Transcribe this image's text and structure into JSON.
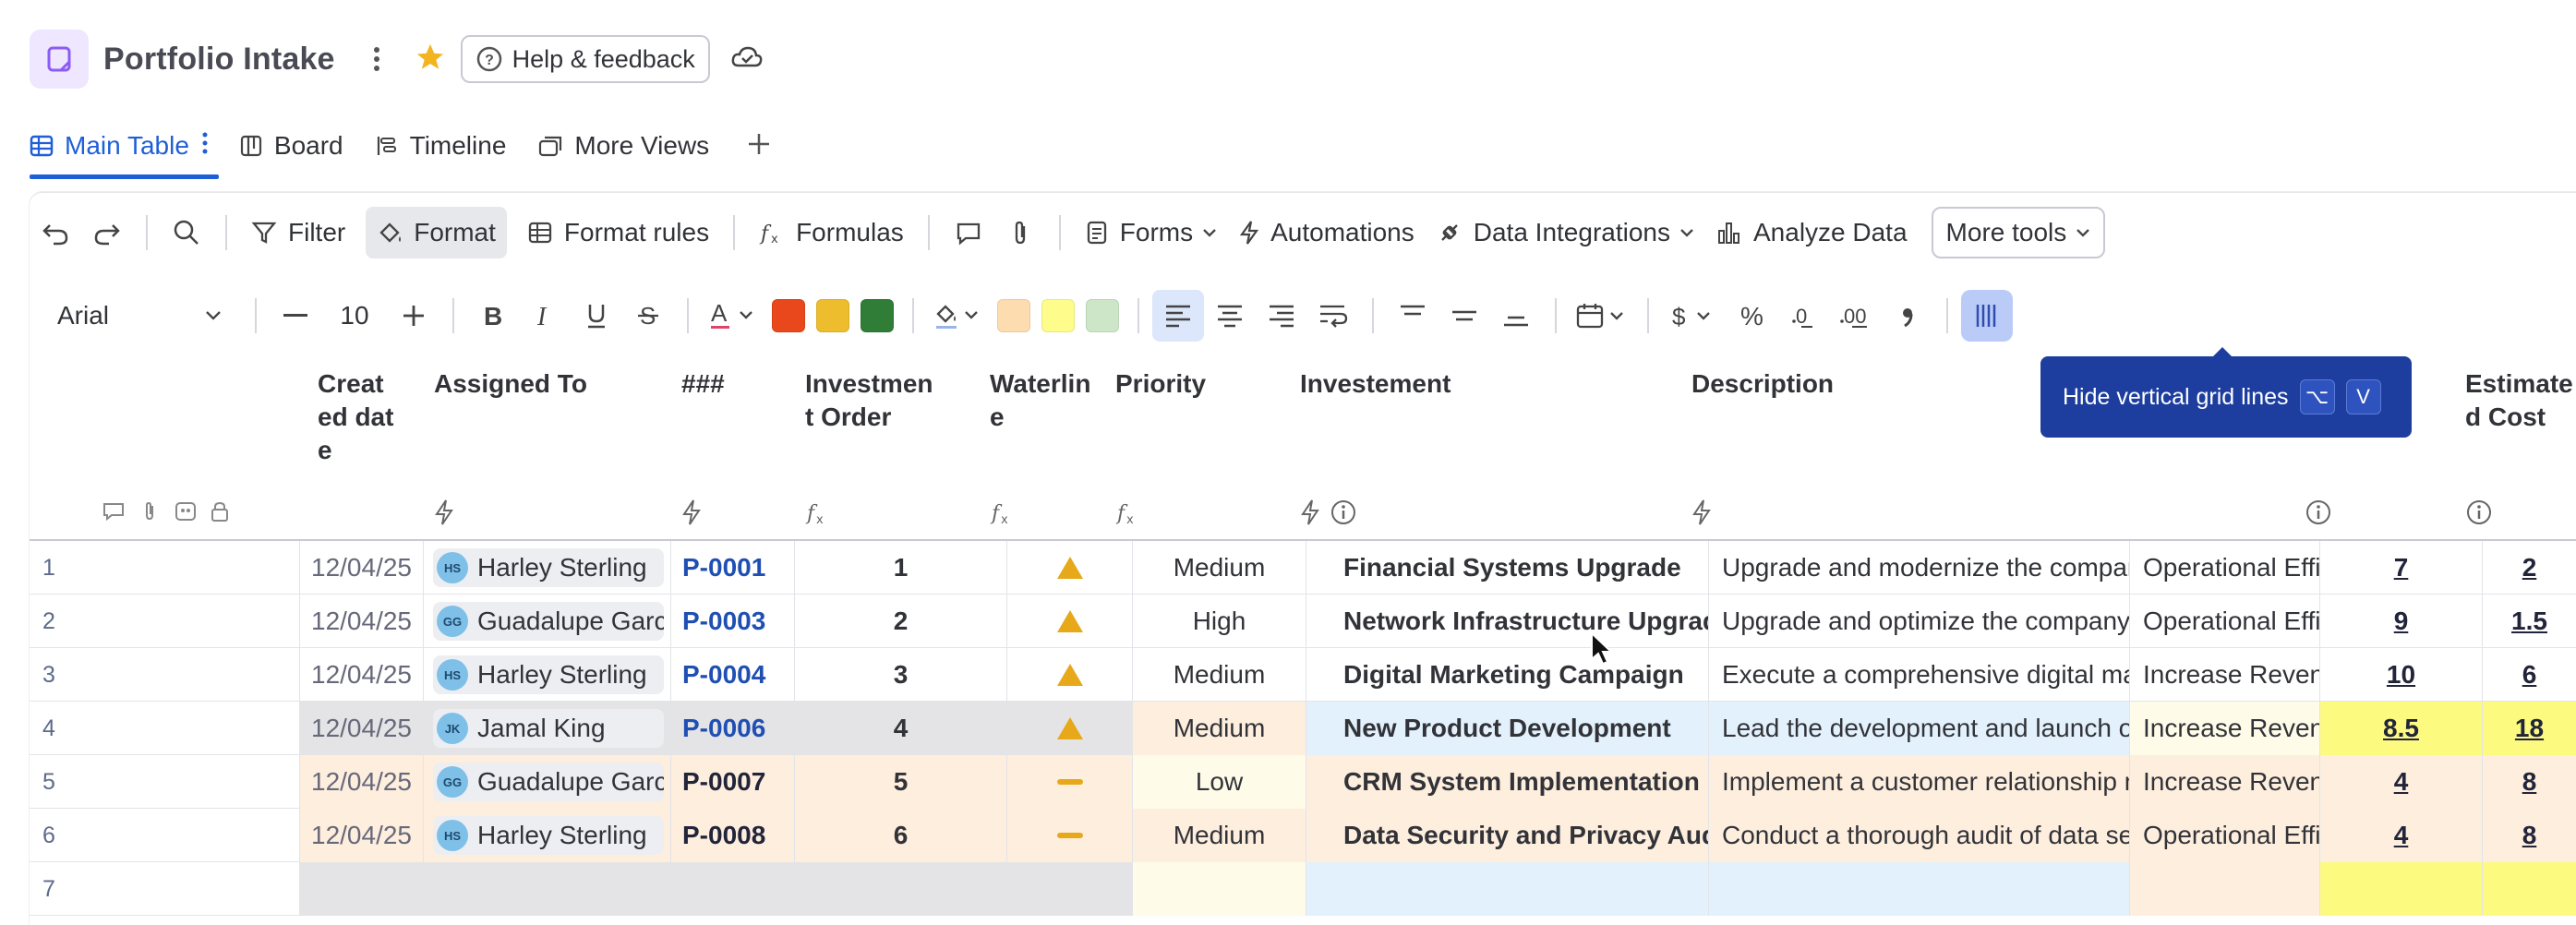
{
  "header": {
    "title": "Portfolio Intake",
    "help_label": "Help & feedback"
  },
  "views": [
    {
      "label": "Main Table",
      "icon": "table-icon"
    },
    {
      "label": "Board",
      "icon": "board-icon"
    },
    {
      "label": "Timeline",
      "icon": "timeline-icon"
    },
    {
      "label": "More Views",
      "icon": "more-views-icon"
    }
  ],
  "toolbar": {
    "filter": "Filter",
    "format": "Format",
    "format_rules": "Format rules",
    "formulas": "Formulas",
    "forms": "Forms",
    "automations": "Automations",
    "data_integrations": "Data Integrations",
    "analyze_data": "Analyze Data",
    "more_tools": "More tools"
  },
  "format_bar": {
    "font": "Arial",
    "size": "10",
    "text_colors": [
      "#e8481c",
      "#edbd2e",
      "#2f7d36"
    ],
    "fill_colors": [
      "#fddcb0",
      "#fefc8a",
      "#cde6c8"
    ]
  },
  "tooltip": {
    "text": "Hide vertical grid lines",
    "key1": "⌥",
    "key2": "V"
  },
  "columns": {
    "created_date": "Created date",
    "assigned_to": "Assigned To",
    "id": "###",
    "investment_order": "Investment Order",
    "waterline": "Waterline",
    "priority": "Priority",
    "investment": "Investement",
    "description": "Description",
    "estimated_cost": "Estimated Cost"
  },
  "rows": [
    {
      "n": "1",
      "date": "12/04/25",
      "initials": "HS",
      "assignee": "Harley Sterling",
      "id": "P-0001",
      "order": "1",
      "waterline": "triangle",
      "priority": "Medium",
      "investment": "Financial Systems Upgrade",
      "description": "Upgrade and modernize the company's financial systems",
      "goal": "Operational Efficiency",
      "c1": "7",
      "c2": "2"
    },
    {
      "n": "2",
      "date": "12/04/25",
      "initials": "GG",
      "assignee": "Guadalupe Garcia",
      "id": "P-0003",
      "order": "2",
      "waterline": "triangle",
      "priority": "High",
      "investment": "Network Infrastructure Upgrade",
      "description": "Upgrade and optimize the company's network",
      "goal": "Operational Efficiency",
      "c1": "9",
      "c2": "1.5"
    },
    {
      "n": "3",
      "date": "12/04/25",
      "initials": "HS",
      "assignee": "Harley Sterling",
      "id": "P-0004",
      "order": "3",
      "waterline": "triangle",
      "priority": "Medium",
      "investment": "Digital Marketing Campaign",
      "description": "Execute a comprehensive digital marketing campaign",
      "goal": "Increase Revenue",
      "c1": "10",
      "c2": "6"
    },
    {
      "n": "4",
      "date": "12/04/25",
      "initials": "JK",
      "assignee": "Jamal King",
      "id": "P-0006",
      "order": "4",
      "waterline": "triangle",
      "priority": "Medium",
      "investment": "New Product Development",
      "description": "Lead the development and launch of a new product",
      "goal": "Increase Revenue",
      "c1": "8.5",
      "c2": "18"
    },
    {
      "n": "5",
      "date": "12/04/25",
      "initials": "GG",
      "assignee": "Guadalupe Garcia",
      "id": "P-0007",
      "order": "5",
      "waterline": "dash",
      "priority": "Low",
      "investment": "CRM System Implementation",
      "description": "Implement a customer relationship management system",
      "goal": "Increase Revenue",
      "c1": "4",
      "c2": "8"
    },
    {
      "n": "6",
      "date": "12/04/25",
      "initials": "HS",
      "assignee": "Harley Sterling",
      "id": "P-0008",
      "order": "6",
      "waterline": "dash",
      "priority": "Medium",
      "investment": "Data Security and Privacy Audit",
      "description": "Conduct a thorough audit of data security",
      "goal": "Operational Efficiency",
      "c1": "4",
      "c2": "8"
    },
    {
      "n": "7",
      "date": "",
      "initials": "",
      "assignee": "",
      "id": "",
      "order": "",
      "waterline": "",
      "priority": "",
      "investment": "",
      "description": "",
      "goal": "",
      "c1": "",
      "c2": ""
    }
  ]
}
